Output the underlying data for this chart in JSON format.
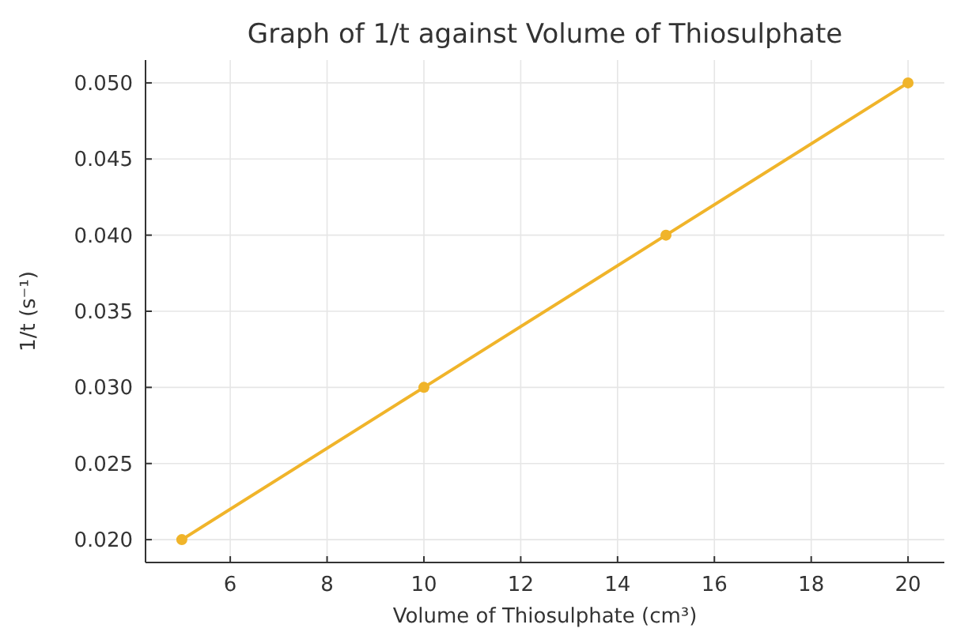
{
  "chart_data": {
    "type": "line",
    "title": "Graph of 1/t against Volume of Thiosulphate",
    "xlabel": "Volume of Thiosulphate (cm³)",
    "ylabel": "1/t (s⁻¹)",
    "x": [
      5,
      10,
      15,
      20
    ],
    "series": [
      {
        "color": "#f0b42a",
        "values": [
          0.02,
          0.03,
          0.04,
          0.05
        ]
      }
    ],
    "xlim": [
      4.25,
      20.75
    ],
    "xticks": [
      6,
      8,
      10,
      12,
      14,
      16,
      18,
      20
    ],
    "ylim": [
      0.0185,
      0.0515
    ],
    "yticks": [
      {
        "value": 0.02,
        "label": "0.020"
      },
      {
        "value": 0.025,
        "label": "0.025"
      },
      {
        "value": 0.03,
        "label": "0.030"
      },
      {
        "value": 0.035,
        "label": "0.035"
      },
      {
        "value": 0.04,
        "label": "0.040"
      },
      {
        "value": 0.045,
        "label": "0.045"
      },
      {
        "value": 0.05,
        "label": "0.050"
      }
    ],
    "grid": true,
    "marker": "circle",
    "line_style": "solid"
  }
}
